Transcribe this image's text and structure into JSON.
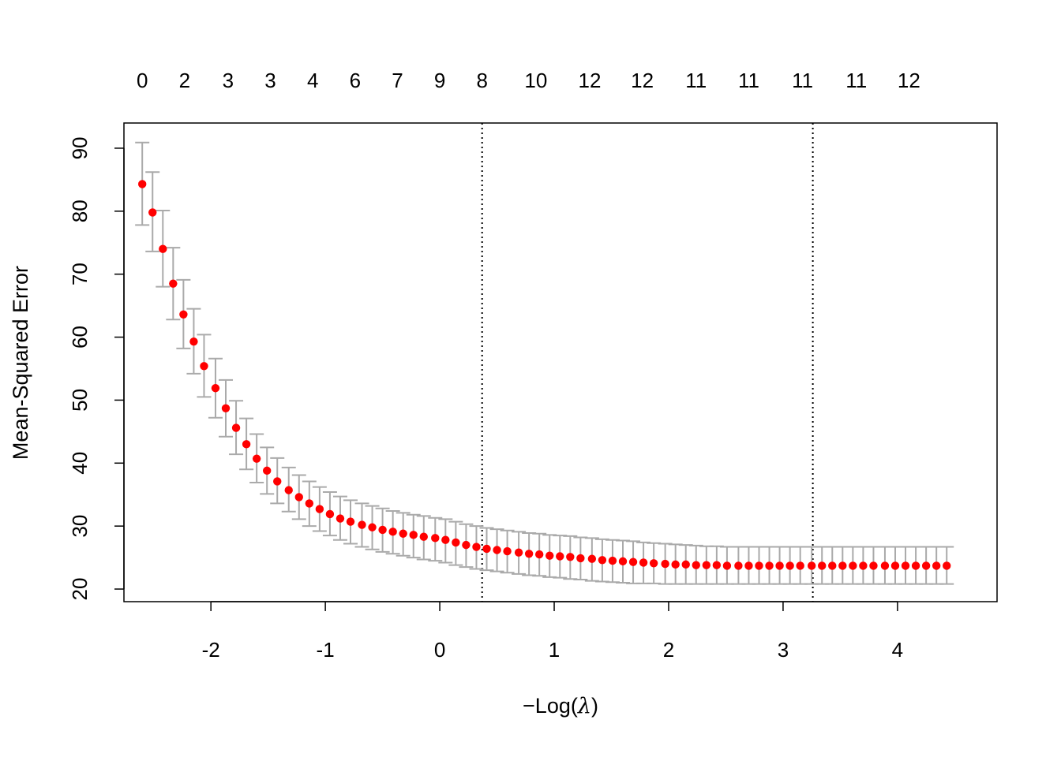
{
  "chart_data": {
    "type": "scatter",
    "xlabel_prefix": "−",
    "xlabel_main": "Log(",
    "xlabel_symbol": "λ",
    "xlabel_suffix": ")",
    "ylabel": "Mean-Squared Error",
    "xlim": [
      -2.76,
      4.87
    ],
    "ylim": [
      18.0,
      94.0
    ],
    "x_ticks": [
      -2,
      -1,
      0,
      1,
      2,
      3,
      4
    ],
    "x_tick_labels": [
      "-2",
      "-1",
      "0",
      "1",
      "2",
      "3",
      "4"
    ],
    "y_ticks": [
      20,
      30,
      40,
      50,
      60,
      70,
      80,
      90
    ],
    "y_tick_labels": [
      "20",
      "30",
      "40",
      "50",
      "60",
      "70",
      "80",
      "90"
    ],
    "top_axis": {
      "x": [
        -2.6,
        -2.23,
        -1.85,
        -1.48,
        -1.11,
        -0.74,
        -0.37,
        0.0,
        0.37,
        0.84,
        1.31,
        1.77,
        2.24,
        2.7,
        3.17,
        3.64,
        4.1
      ],
      "labels": [
        "0",
        "2",
        "3",
        "3",
        "4",
        "6",
        "7",
        "9",
        "8",
        "10",
        "12",
        "12",
        "11",
        "11",
        "11",
        "11",
        "12"
      ]
    },
    "vlines": [
      0.37,
      3.26
    ],
    "grid": false,
    "colors": {
      "points": "#ff0000",
      "errorbars": "#aaaaaa",
      "vlines": "#000000"
    },
    "series": [
      {
        "x": [
          -2.6,
          -2.51,
          -2.42,
          -2.33,
          -2.24,
          -2.15,
          -2.06,
          -1.96,
          -1.87,
          -1.78,
          -1.69,
          -1.6,
          -1.51,
          -1.42,
          -1.32,
          -1.23,
          -1.14,
          -1.05,
          -0.96,
          -0.87,
          -0.78,
          -0.68,
          -0.59,
          -0.5,
          -0.41,
          -0.32,
          -0.23,
          -0.14,
          -0.04,
          0.05,
          0.14,
          0.23,
          0.32,
          0.41,
          0.5,
          0.59,
          0.69,
          0.78,
          0.87,
          0.96,
          1.05,
          1.14,
          1.23,
          1.33,
          1.42,
          1.51,
          1.6,
          1.69,
          1.78,
          1.87,
          1.97,
          2.06,
          2.15,
          2.24,
          2.33,
          2.42,
          2.51,
          2.61,
          2.7,
          2.79,
          2.88,
          2.97,
          3.06,
          3.15,
          3.25,
          3.34,
          3.43,
          3.52,
          3.61,
          3.7,
          3.79,
          3.89,
          3.98,
          4.07,
          4.16,
          4.25,
          4.34,
          4.43
        ],
        "y": [
          84.3,
          79.8,
          74.0,
          68.5,
          63.6,
          59.3,
          55.4,
          51.9,
          48.7,
          45.6,
          43.0,
          40.7,
          38.8,
          37.1,
          35.7,
          34.6,
          33.6,
          32.7,
          31.9,
          31.2,
          30.7,
          30.2,
          29.8,
          29.4,
          29.1,
          28.8,
          28.6,
          28.3,
          28.1,
          27.8,
          27.4,
          27.0,
          26.7,
          26.4,
          26.2,
          26.0,
          25.8,
          25.6,
          25.5,
          25.3,
          25.2,
          25.1,
          24.9,
          24.8,
          24.6,
          24.5,
          24.4,
          24.3,
          24.2,
          24.1,
          24.0,
          23.9,
          23.9,
          23.8,
          23.8,
          23.8,
          23.7,
          23.7,
          23.7,
          23.7,
          23.7,
          23.7,
          23.7,
          23.7,
          23.7,
          23.7,
          23.7,
          23.7,
          23.7,
          23.7,
          23.7,
          23.7,
          23.7,
          23.7,
          23.7,
          23.7,
          23.7,
          23.7
        ],
        "lower": [
          77.8,
          73.6,
          68.0,
          62.8,
          58.2,
          54.2,
          50.5,
          47.2,
          44.2,
          41.4,
          39.0,
          36.9,
          35.1,
          33.6,
          32.3,
          31.1,
          30.0,
          29.2,
          28.5,
          27.8,
          27.2,
          26.7,
          26.3,
          25.9,
          25.6,
          25.3,
          25.0,
          24.7,
          24.5,
          24.2,
          23.8,
          23.5,
          23.2,
          23.0,
          22.8,
          22.6,
          22.4,
          22.2,
          22.1,
          21.9,
          21.8,
          21.6,
          21.5,
          21.3,
          21.2,
          21.1,
          21.0,
          20.9,
          20.9,
          20.9,
          20.8,
          20.8,
          20.8,
          20.8,
          20.8,
          20.8,
          20.8,
          20.8,
          20.8,
          20.8,
          20.8,
          20.8,
          20.8,
          20.8,
          20.8,
          20.8,
          20.8,
          20.8,
          20.8,
          20.8,
          20.8,
          20.8,
          20.8,
          20.8,
          20.8,
          20.8,
          20.8,
          20.8
        ],
        "upper": [
          90.9,
          86.2,
          80.1,
          74.2,
          69.1,
          64.5,
          60.4,
          56.6,
          53.2,
          49.9,
          47.1,
          44.6,
          42.5,
          40.8,
          39.3,
          38.1,
          37.1,
          36.2,
          35.4,
          34.7,
          34.1,
          33.6,
          33.2,
          32.8,
          32.4,
          32.1,
          31.8,
          31.6,
          31.3,
          31.1,
          30.7,
          30.3,
          30.0,
          29.7,
          29.5,
          29.3,
          29.1,
          28.9,
          28.8,
          28.6,
          28.5,
          28.4,
          28.2,
          28.1,
          27.9,
          27.8,
          27.7,
          27.6,
          27.4,
          27.3,
          27.2,
          27.1,
          27.0,
          26.9,
          26.8,
          26.8,
          26.7,
          26.7,
          26.7,
          26.7,
          26.7,
          26.7,
          26.7,
          26.7,
          26.7,
          26.7,
          26.7,
          26.7,
          26.7,
          26.7,
          26.7,
          26.7,
          26.7,
          26.7,
          26.7,
          26.7,
          26.7,
          26.7
        ]
      }
    ]
  }
}
